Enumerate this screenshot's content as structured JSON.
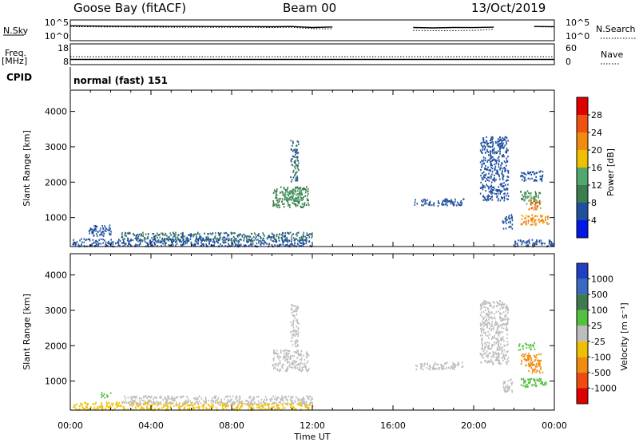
{
  "header": {
    "station": "Goose Bay (fitACF)",
    "beam": "Beam 00",
    "date": "13/Oct/2019"
  },
  "strip_labels": {
    "nsky": "N.Sky",
    "nsky_ticks": [
      "10^5",
      "10^0"
    ],
    "nsearch": "N.Search",
    "nsearch_ticks": [
      "10^5",
      "10^0"
    ],
    "freq": "Freq.",
    "freq_unit": "[MHz]",
    "freq_ticks": [
      "18",
      "8"
    ],
    "nave": "Nave",
    "nave_ticks": [
      "60",
      "0"
    ],
    "cpid": "CPID",
    "cpid_value": "normal (fast) 151"
  },
  "colors": {
    "power_scale": [
      "#0018e6",
      "#1f4f9f",
      "#3a7d4f",
      "#52a86c",
      "#f0c000",
      "#f08c10",
      "#f05010",
      "#e00000"
    ],
    "velocity_scale": [
      "#2040c0",
      "#3a6abf",
      "#3f7a4f",
      "#54c040",
      "#bdbdbd",
      "#f0c000",
      "#f08c10",
      "#f04c10",
      "#e00000"
    ]
  },
  "chart_data": [
    {
      "type": "line",
      "panel": "N.Sky / N.Search",
      "y_scale": "log",
      "ylim": [
        1,
        100000
      ],
      "x_hours": [
        0,
        1,
        2,
        3,
        4,
        5,
        6,
        7,
        8,
        9,
        10,
        11,
        12,
        13,
        14,
        15,
        16,
        17,
        18,
        19,
        20,
        21,
        22,
        23,
        24
      ],
      "series": [
        {
          "name": "N.Sky",
          "values": [
            4000,
            3500,
            3200,
            3000,
            3000,
            2800,
            2800,
            2600,
            2500,
            2500,
            2300,
            2600,
            1500,
            2000,
            0,
            2000,
            0,
            1500,
            1200,
            1500,
            1400,
            1800,
            0,
            2600,
            2400
          ]
        },
        {
          "name": "N.Search",
          "values": [
            2500,
            2200,
            2000,
            2000,
            1900,
            1800,
            1800,
            1700,
            1600,
            1600,
            1500,
            1700,
            800,
            700,
            0,
            600,
            0,
            300,
            250,
            250,
            300,
            600,
            0,
            2200,
            2000
          ]
        }
      ]
    },
    {
      "type": "line",
      "panel": "Freq. / Nave",
      "ylim": [
        8,
        18
      ],
      "ylim_right": [
        0,
        60
      ],
      "x_hours": [
        0,
        2,
        4,
        6,
        8,
        10,
        12,
        13,
        14,
        15,
        16,
        17,
        19,
        20,
        21,
        22,
        24
      ],
      "series": [
        {
          "name": "Freq. [MHz]",
          "values": [
            10.5,
            10.5,
            10.5,
            10.5,
            10.5,
            10.5,
            10.5,
            10.5,
            10.5,
            10.5,
            10.5,
            10.5,
            10.5,
            10.5,
            10.5,
            10.5,
            10.5
          ]
        },
        {
          "name": "Nave",
          "values": [
            23,
            23,
            23,
            23,
            23,
            23,
            23,
            23,
            23,
            23,
            23,
            23,
            23,
            23,
            23,
            23,
            23
          ]
        }
      ]
    },
    {
      "type": "heatmap",
      "panel": "Power",
      "ylabel": "Slant Range [km]",
      "xlabel": "Time UT",
      "xlim_hours": [
        0,
        24
      ],
      "ylim": [
        180,
        4600
      ],
      "yticks": [
        "1000",
        "2000",
        "3000",
        "4000"
      ],
      "colorbar_label": "Power [dB]",
      "colorbar_ticks": [
        "4",
        "8",
        "12",
        "16",
        "20",
        "24",
        "28"
      ],
      "regions": [
        {
          "t0": 0.1,
          "t1": 12.0,
          "r0": 200,
          "r1": 420,
          "v": 6
        },
        {
          "t0": 2.5,
          "t1": 12.0,
          "r0": 350,
          "r1": 600,
          "v": 8
        },
        {
          "t0": 0.8,
          "t1": 2.0,
          "r0": 500,
          "r1": 800,
          "v": 6
        },
        {
          "t0": 10.0,
          "t1": 11.8,
          "r0": 1300,
          "r1": 1900,
          "v": 10
        },
        {
          "t0": 10.6,
          "t1": 11.5,
          "r0": 1500,
          "r1": 1800,
          "v": 14
        },
        {
          "t0": 10.9,
          "t1": 11.3,
          "r0": 2000,
          "r1": 3200,
          "v": 8
        },
        {
          "t0": 17.0,
          "t1": 19.5,
          "r0": 1350,
          "r1": 1550,
          "v": 6
        },
        {
          "t0": 20.3,
          "t1": 21.7,
          "r0": 1500,
          "r1": 3300,
          "v": 6
        },
        {
          "t0": 21.4,
          "t1": 21.9,
          "r0": 700,
          "r1": 1100,
          "v": 6
        },
        {
          "t0": 22.3,
          "t1": 23.7,
          "r0": 800,
          "r1": 1100,
          "v": 22
        },
        {
          "t0": 22.3,
          "t1": 23.3,
          "r0": 1400,
          "r1": 1800,
          "v": 12
        },
        {
          "t0": 22.7,
          "t1": 23.3,
          "r0": 1250,
          "r1": 1550,
          "v": 24
        },
        {
          "t0": 22.3,
          "t1": 23.4,
          "r0": 2050,
          "r1": 2350,
          "v": 6
        },
        {
          "t0": 22.0,
          "t1": 24.0,
          "r0": 200,
          "r1": 400,
          "v": 5
        }
      ]
    },
    {
      "type": "heatmap",
      "panel": "Velocity",
      "ylabel": "Slant Range [km]",
      "xlabel": "Time UT",
      "xlim_hours": [
        0,
        24
      ],
      "ylim": [
        180,
        4600
      ],
      "yticks": [
        "1000",
        "2000",
        "3000",
        "4000"
      ],
      "xticks": [
        "00:00",
        "04:00",
        "08:00",
        "12:00",
        "16:00",
        "20:00",
        "00:00"
      ],
      "colorbar_label": "Velocity [m s⁻¹]",
      "colorbar_ticks": [
        "1000",
        "500",
        "100",
        "25",
        "-25",
        "-100",
        "-500",
        "-1000"
      ],
      "regions": [
        {
          "t0": 0.1,
          "t1": 12.0,
          "r0": 200,
          "r1": 420,
          "v": -60
        },
        {
          "t0": 2.5,
          "t1": 12.0,
          "r0": 350,
          "r1": 600,
          "v": 0
        },
        {
          "t0": 1.5,
          "t1": 2.0,
          "r0": 550,
          "r1": 700,
          "v": 60
        },
        {
          "t0": 10.0,
          "t1": 11.8,
          "r0": 1300,
          "r1": 1900,
          "v": 0
        },
        {
          "t0": 10.9,
          "t1": 11.3,
          "r0": 2000,
          "r1": 3200,
          "v": 0
        },
        {
          "t0": 17.0,
          "t1": 19.5,
          "r0": 1350,
          "r1": 1550,
          "v": 0
        },
        {
          "t0": 20.3,
          "t1": 21.7,
          "r0": 1500,
          "r1": 3300,
          "v": 0
        },
        {
          "t0": 21.4,
          "t1": 21.9,
          "r0": 700,
          "r1": 1100,
          "v": 0
        },
        {
          "t0": 22.3,
          "t1": 23.7,
          "r0": 850,
          "r1": 1100,
          "v": 60
        },
        {
          "t0": 22.3,
          "t1": 23.3,
          "r0": 1450,
          "r1": 1800,
          "v": -300
        },
        {
          "t0": 22.7,
          "t1": 23.4,
          "r0": 1250,
          "r1": 1550,
          "v": -300
        },
        {
          "t0": 22.2,
          "t1": 23.0,
          "r0": 1900,
          "r1": 2100,
          "v": 60
        }
      ]
    }
  ]
}
